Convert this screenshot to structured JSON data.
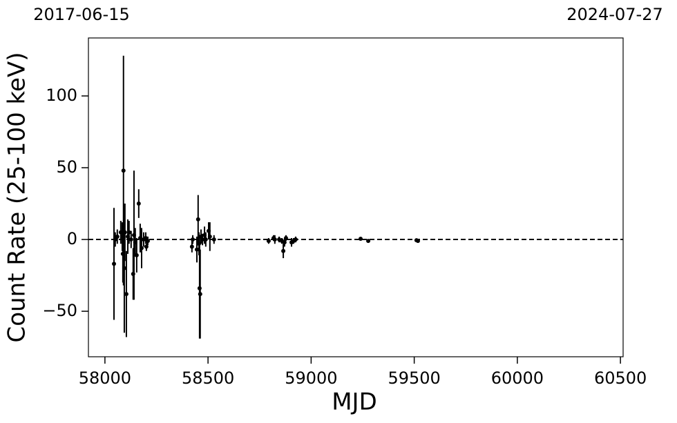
{
  "chart_data": {
    "type": "errorbar",
    "top_labels": [
      "2017-06-15",
      "2024-07-27"
    ],
    "xlabel": "MJD",
    "ylabel": "Count Rate (25-100 keV)",
    "xlim": [
      57920,
      60513
    ],
    "ylim": [
      -81.7,
      140.4
    ],
    "xticks": [
      58000,
      58500,
      59000,
      59500,
      60000,
      60500
    ],
    "yticks": [
      {
        "value": -50,
        "label": "−50"
      },
      0,
      50,
      100
    ],
    "reference_line": 0,
    "color": "#000000",
    "series": [
      {
        "name": "data",
        "x": [
          58044,
          58050,
          58060,
          58077,
          58084,
          58087,
          58090,
          58094,
          58097,
          58104,
          58111,
          58117,
          58127,
          58137,
          58141,
          58147,
          58154,
          58164,
          58171,
          58178,
          58188,
          58198,
          58201,
          58208,
          58422,
          58426,
          58446,
          58452,
          58456,
          58459,
          58462,
          58466,
          58473,
          58483,
          58489,
          58503,
          58509,
          58529,
          58794,
          58818,
          58824,
          58845,
          58858,
          58865,
          58871,
          58878,
          58905,
          58915,
          58925,
          59240,
          59277,
          59511,
          59518
        ],
        "values": [
          -17,
          0,
          2,
          5,
          2,
          -10,
          48,
          -20,
          5,
          -38,
          2,
          5,
          0,
          -24,
          3,
          -2,
          -11,
          25,
          1,
          -6,
          0,
          1,
          -5,
          -1,
          -5,
          0,
          -7,
          14,
          -3,
          -34,
          -38,
          2,
          0,
          3,
          0,
          6,
          2,
          0,
          -1,
          1,
          0,
          0,
          -1,
          -8,
          -2,
          1,
          -2,
          -1,
          0,
          0.5,
          -1,
          -0.5,
          -1
        ],
        "errors": [
          39,
          5,
          5,
          8,
          10,
          20,
          80,
          45,
          20,
          30,
          12,
          8,
          6,
          18,
          45,
          10,
          12,
          10,
          10,
          14,
          5,
          4,
          3,
          3,
          4,
          3,
          9,
          17,
          8,
          35,
          31,
          5,
          4,
          6,
          5,
          6,
          10,
          3,
          2,
          2,
          3,
          2,
          2,
          5,
          3,
          2,
          3,
          2,
          2,
          1,
          1,
          1,
          1
        ]
      }
    ]
  }
}
